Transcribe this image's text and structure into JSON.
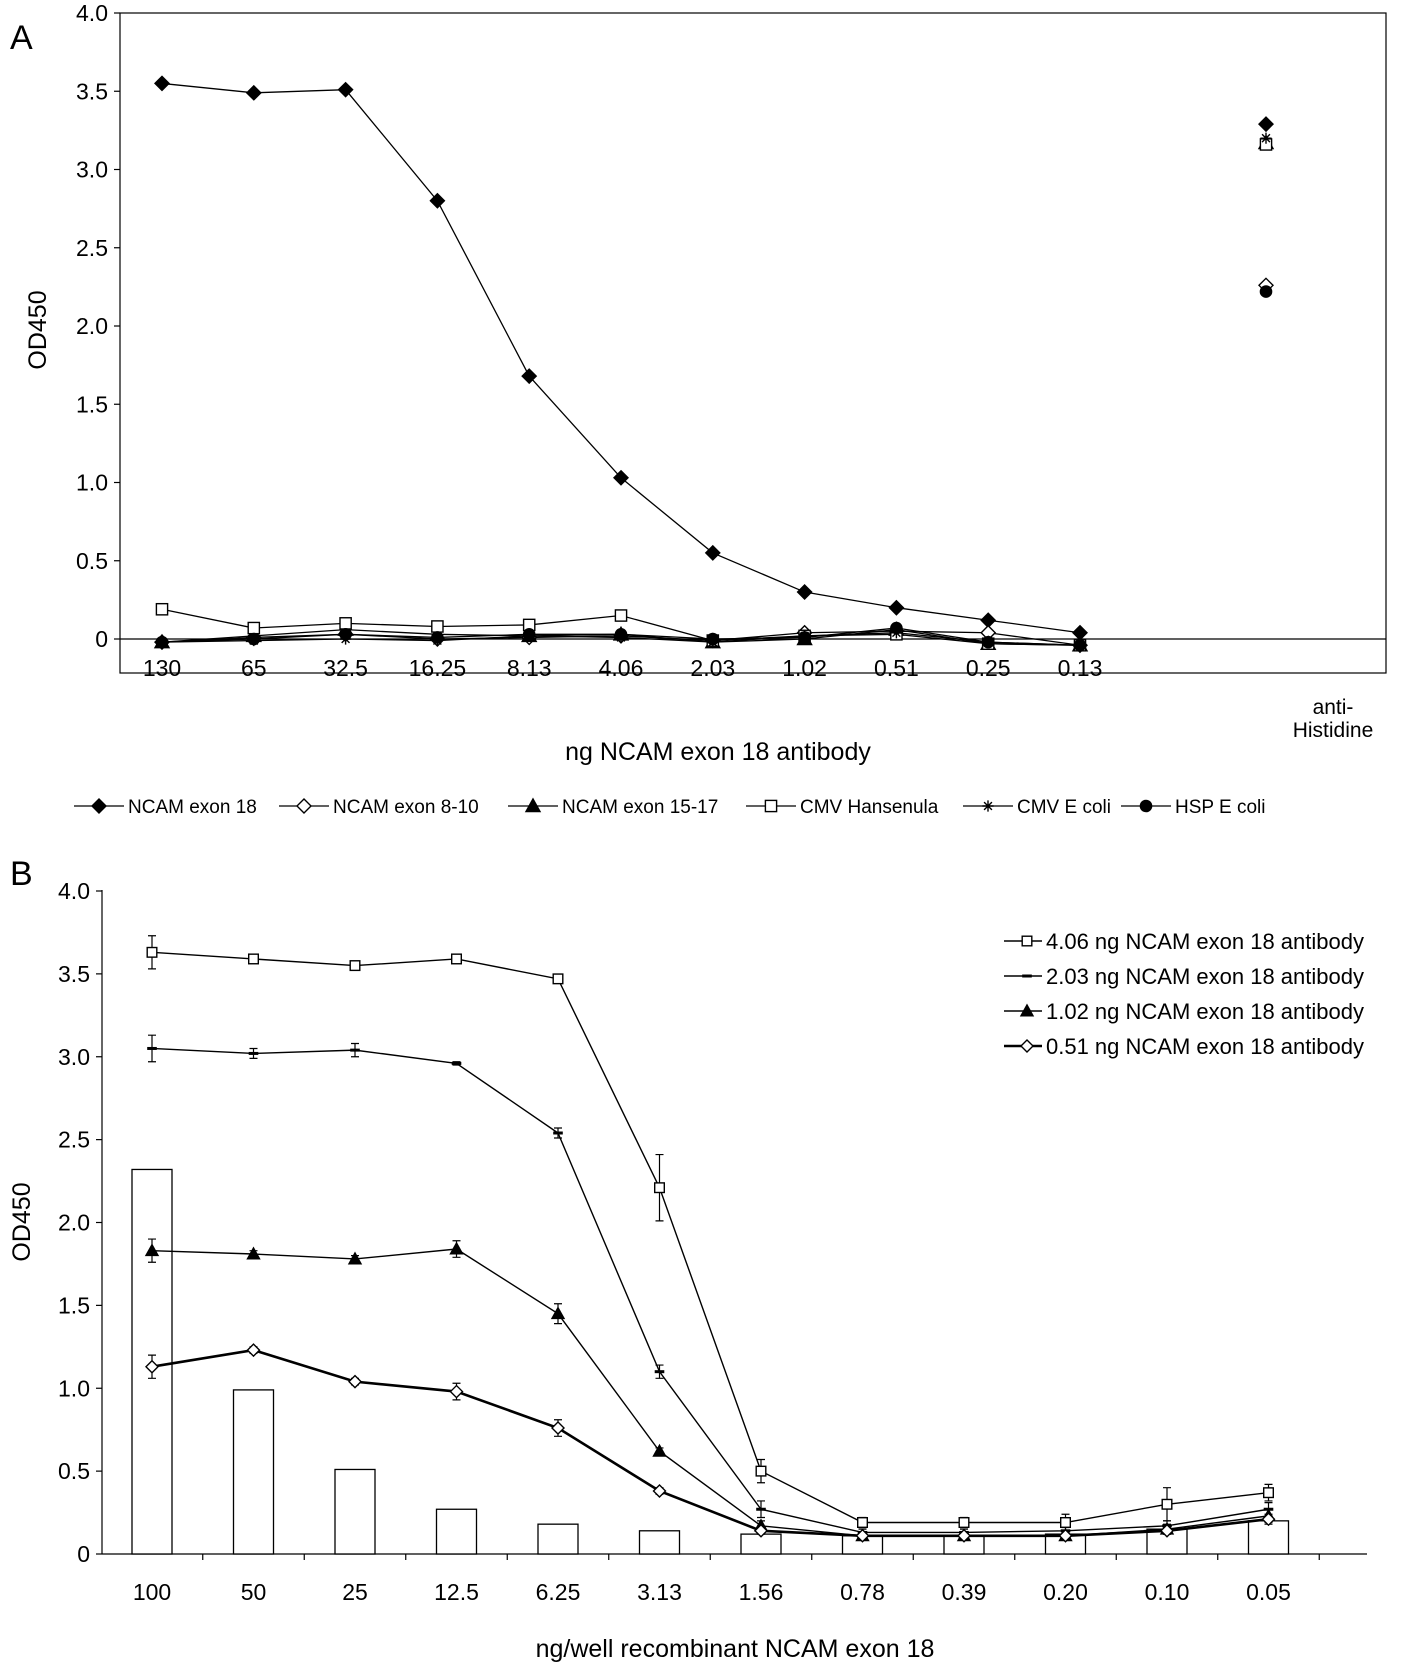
{
  "chart_data": [
    {
      "panel_label": "A",
      "type": "line",
      "xlabel": "ng NCAM exon 18 antibody",
      "ylabel": "OD450",
      "ylim": [
        0,
        4.0
      ],
      "yticks": [
        "0",
        "0.5",
        "1.0",
        "1.5",
        "2.0",
        "2.5",
        "3.0",
        "3.5",
        "4.0"
      ],
      "categories": [
        "130",
        "65",
        "32.5",
        "16.25",
        "8.13",
        "4.06",
        "2.03",
        "1.02",
        "0.51",
        "0.25",
        "0.13"
      ],
      "extra_category": [
        "anti-",
        "Histidine"
      ],
      "legend_position": "bottom",
      "series": [
        {
          "name": "NCAM exon 18",
          "marker": "diamond-filled",
          "values": [
            3.55,
            3.49,
            3.51,
            2.8,
            1.68,
            1.03,
            0.55,
            0.3,
            0.2,
            0.12,
            0.04
          ],
          "extra_value": 3.29
        },
        {
          "name": "NCAM exon 8-10",
          "marker": "diamond-open",
          "values": [
            -0.02,
            0.01,
            0.03,
            0.0,
            0.01,
            0.02,
            -0.01,
            0.04,
            0.05,
            0.04,
            -0.04
          ],
          "extra_value": 2.26
        },
        {
          "name": "NCAM exon 15-17",
          "marker": "triangle-filled",
          "values": [
            -0.02,
            0.02,
            0.06,
            0.03,
            0.02,
            0.03,
            -0.02,
            0.0,
            0.06,
            -0.03,
            -0.04
          ],
          "extra_value": 3.17
        },
        {
          "name": "CMV Hansenula",
          "marker": "square-open",
          "values": [
            0.19,
            0.07,
            0.1,
            0.08,
            0.09,
            0.15,
            -0.01,
            0.02,
            0.03,
            -0.03,
            -0.04
          ],
          "extra_value": 3.16
        },
        {
          "name": "CMV E coli",
          "marker": "star",
          "values": [
            -0.02,
            -0.01,
            0.0,
            -0.01,
            0.02,
            0.01,
            -0.02,
            0.02,
            0.04,
            -0.02,
            -0.04
          ],
          "extra_value": 3.2
        },
        {
          "name": "HSP E coli",
          "marker": "circle-filled",
          "values": [
            -0.02,
            0.0,
            0.03,
            0.01,
            0.03,
            0.03,
            0.0,
            0.01,
            0.07,
            -0.02,
            -0.04
          ],
          "extra_value": 2.22
        }
      ]
    },
    {
      "panel_label": "B",
      "type": "line",
      "xlabel": "ng/well recombinant NCAM exon 18",
      "ylabel": "OD450",
      "ylim": [
        0,
        4.0
      ],
      "yticks": [
        "0",
        "0.5",
        "1.0",
        "1.5",
        "2.0",
        "2.5",
        "3.0",
        "3.5",
        "4.0"
      ],
      "categories": [
        "100",
        "50",
        "25",
        "12.5",
        "6.25",
        "3.13",
        "1.56",
        "0.78",
        "0.39",
        "0.20",
        "0.10",
        "0.05"
      ],
      "legend_position": "top-right",
      "bars": [
        2.32,
        0.99,
        0.51,
        0.27,
        0.18,
        0.14,
        0.12,
        0.11,
        0.11,
        0.12,
        0.15,
        0.2
      ],
      "series": [
        {
          "name": "4.06 ng NCAM exon 18 antibody",
          "marker": "square-open",
          "values": [
            3.63,
            3.59,
            3.55,
            3.59,
            3.47,
            2.21,
            0.5,
            0.19,
            0.19,
            0.19,
            0.3,
            0.37
          ],
          "errors": [
            0.1,
            0.02,
            0.02,
            0.02,
            0.02,
            0.2,
            0.07,
            0.03,
            0.03,
            0.05,
            0.1,
            0.05
          ]
        },
        {
          "name": "2.03 ng NCAM exon 18 antibody",
          "marker": "dash",
          "values": [
            3.05,
            3.02,
            3.04,
            2.96,
            2.54,
            1.1,
            0.27,
            0.13,
            0.13,
            0.14,
            0.17,
            0.27
          ],
          "errors": [
            0.08,
            0.03,
            0.04,
            0.01,
            0.03,
            0.04,
            0.05,
            0.02,
            0.02,
            0.02,
            0.03,
            0.04
          ]
        },
        {
          "name": "1.02 ng NCAM exon 18 antibody",
          "marker": "triangle-filled",
          "values": [
            1.83,
            1.81,
            1.78,
            1.84,
            1.45,
            0.62,
            0.17,
            0.11,
            0.11,
            0.11,
            0.15,
            0.23
          ],
          "errors": [
            0.07,
            0.02,
            0.02,
            0.05,
            0.06,
            0.02,
            0.03,
            0.02,
            0.02,
            0.02,
            0.03,
            0.04
          ]
        },
        {
          "name": "0.51 ng NCAM exon 18 antibody",
          "marker": "diamond-open",
          "values": [
            1.13,
            1.23,
            1.04,
            0.98,
            0.76,
            0.38,
            0.14,
            0.11,
            0.11,
            0.11,
            0.14,
            0.21
          ],
          "errors": [
            0.07,
            0.02,
            0.02,
            0.05,
            0.05,
            0.02,
            0.02,
            0.02,
            0.02,
            0.02,
            0.02,
            0.03
          ]
        }
      ]
    }
  ]
}
